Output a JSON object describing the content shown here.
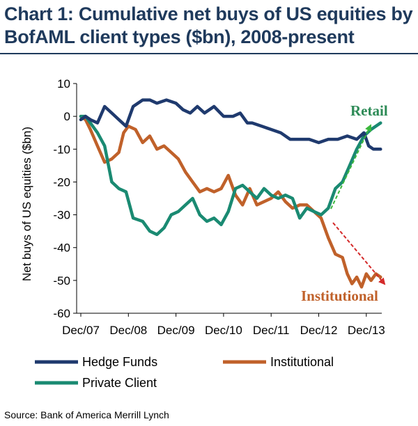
{
  "header": {
    "title_line1": "Chart 1: Cumulative net buys of US equities by",
    "title_line2": "BofAML client types ($bn), 2008-present"
  },
  "source": "Source: Bank of America Merrill Lynch",
  "chart_data": {
    "type": "line",
    "title": "Chart 1: Cumulative net buys of US equities by BofAML client types ($bn), 2008-present",
    "xlabel": "",
    "ylabel": "Net buys of US equities ($bn)",
    "ylim": [
      -60,
      10
    ],
    "yticks": [
      10,
      0,
      -10,
      -20,
      -30,
      -40,
      -50,
      -60
    ],
    "xlim": [
      2008.0,
      2014.5
    ],
    "xtick_labels": [
      "Dec/07",
      "Dec/08",
      "Dec/09",
      "Dec/10",
      "Dec/11",
      "Dec/12",
      "Dec/13"
    ],
    "grid": false,
    "legend_position": "bottom",
    "series": [
      {
        "name": "Hedge Funds",
        "color": "#1f3a6e",
        "x": [
          2008.0,
          2008.1,
          2008.2,
          2008.35,
          2008.5,
          2008.65,
          2008.8,
          2008.95,
          2009.1,
          2009.3,
          2009.45,
          2009.6,
          2009.8,
          2010.0,
          2010.15,
          2010.3,
          2010.45,
          2010.6,
          2010.8,
          2011.0,
          2011.2,
          2011.35,
          2011.5,
          2011.6,
          2011.8,
          2012.0,
          2012.2,
          2012.4,
          2012.6,
          2012.8,
          2013.0,
          2013.2,
          2013.4,
          2013.6,
          2013.8,
          2013.95,
          2014.05,
          2014.15,
          2014.3
        ],
        "values": [
          -1,
          0,
          -1,
          -2,
          3,
          1,
          -1,
          -3,
          3,
          5,
          5,
          4,
          5,
          4,
          2,
          1,
          3,
          1,
          3,
          0,
          0,
          1,
          -2,
          -2,
          -3,
          -4,
          -5,
          -7,
          -7,
          -7,
          -8,
          -7,
          -7,
          -6,
          -7,
          -5,
          -9,
          -10,
          -10
        ]
      },
      {
        "name": "Institutional",
        "color": "#c0612a",
        "x": [
          2008.0,
          2008.1,
          2008.2,
          2008.35,
          2008.5,
          2008.65,
          2008.8,
          2008.9,
          2009.0,
          2009.15,
          2009.3,
          2009.45,
          2009.6,
          2009.75,
          2009.9,
          2010.05,
          2010.2,
          2010.35,
          2010.5,
          2010.65,
          2010.8,
          2010.95,
          2011.1,
          2011.25,
          2011.4,
          2011.55,
          2011.7,
          2011.85,
          2012.0,
          2012.15,
          2012.3,
          2012.45,
          2012.6,
          2012.75,
          2012.9,
          2013.05,
          2013.2,
          2013.35,
          2013.5,
          2013.6,
          2013.7,
          2013.8,
          2013.9,
          2014.0,
          2014.1,
          2014.2,
          2014.3
        ],
        "values": [
          0,
          -1,
          -4,
          -9,
          -14,
          -13,
          -11,
          -5,
          -3,
          -4,
          -8,
          -6,
          -10,
          -9,
          -11,
          -13,
          -17,
          -20,
          -23,
          -22,
          -23,
          -22,
          -18,
          -24,
          -27,
          -22,
          -27,
          -26,
          -25,
          -23,
          -26,
          -28,
          -27,
          -27,
          -29,
          -31,
          -37,
          -42,
          -43,
          -48,
          -51,
          -49,
          -52,
          -48,
          -50,
          -48,
          -49
        ]
      },
      {
        "name": "Private Client",
        "color": "#1a8a72",
        "x": [
          2008.0,
          2008.1,
          2008.2,
          2008.35,
          2008.5,
          2008.65,
          2008.8,
          2008.95,
          2009.1,
          2009.3,
          2009.45,
          2009.6,
          2009.75,
          2009.9,
          2010.05,
          2010.2,
          2010.35,
          2010.5,
          2010.65,
          2010.8,
          2010.95,
          2011.1,
          2011.25,
          2011.4,
          2011.55,
          2011.7,
          2011.85,
          2012.0,
          2012.15,
          2012.3,
          2012.45,
          2012.6,
          2012.75,
          2012.9,
          2013.05,
          2013.2,
          2013.35,
          2013.5,
          2013.65,
          2013.8,
          2013.95,
          2014.1,
          2014.3
        ],
        "values": [
          0,
          0,
          -2,
          -5,
          -9,
          -20,
          -22,
          -23,
          -31,
          -32,
          -35,
          -36,
          -34,
          -30,
          -29,
          -27,
          -25,
          -30,
          -32,
          -31,
          -33,
          -29,
          -22,
          -21,
          -23,
          -25,
          -22,
          -24,
          -25,
          -24,
          -25,
          -31,
          -28,
          -29,
          -30,
          -28,
          -22,
          -20,
          -15,
          -10,
          -6,
          -4,
          -2
        ]
      }
    ],
    "annotations": [
      {
        "text": "Retail",
        "color": "#2e8b57"
      },
      {
        "text": "Institutional",
        "color": "#c0612a"
      }
    ]
  }
}
